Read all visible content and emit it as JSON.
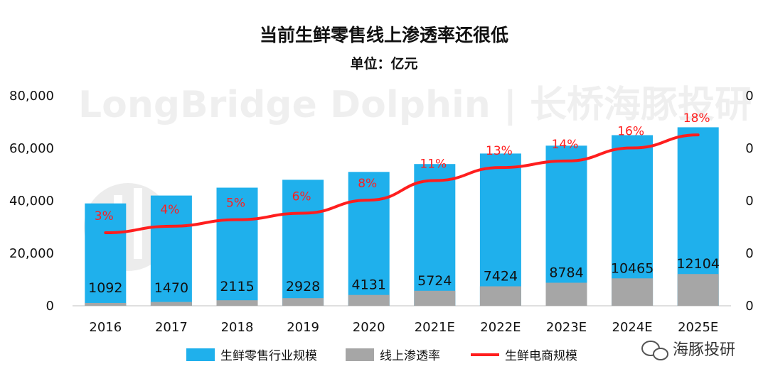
{
  "logo": {
    "text": "海豚投研"
  },
  "watermark": {
    "text": "LongBridge Dolphin | 长桥海豚投研"
  },
  "chart_data": {
    "type": "bar",
    "title": "当前生鲜零售线上渗透率还很低",
    "subtitle": "单位：亿元",
    "categories": [
      "2016",
      "2017",
      "2018",
      "2019",
      "2020",
      "2021E",
      "2022E",
      "2023E",
      "2024E",
      "2025E"
    ],
    "y_left": {
      "min": 0,
      "max": 80000,
      "ticks": [
        0,
        20000,
        40000,
        60000,
        80000
      ],
      "tick_labels": [
        "0",
        "20,000",
        "40,000",
        "60,000",
        "80,000"
      ]
    },
    "y_right": {
      "tick_labels": [
        "0",
        "0",
        "0",
        "0",
        "0"
      ]
    },
    "series": [
      {
        "name": "生鲜零售行业规模",
        "type": "bar",
        "color": "#1fb0ec",
        "values": [
          39000,
          42000,
          45000,
          48000,
          51000,
          54000,
          58000,
          61000,
          65000,
          68000
        ]
      },
      {
        "name": "线上渗透率",
        "type": "bar",
        "color": "#a6a6a6",
        "values": [
          1092,
          1470,
          2115,
          2928,
          4131,
          5724,
          7424,
          8784,
          10465,
          12104
        ],
        "labels": [
          "1092",
          "1470",
          "2115",
          "2928",
          "4131",
          "5724",
          "7424",
          "8784",
          "10465",
          "12104"
        ]
      },
      {
        "name": "生鲜电商规模",
        "type": "line",
        "color": "#ff1e1e",
        "values": [
          3,
          4,
          5,
          6,
          8,
          11,
          13,
          14,
          16,
          18
        ],
        "labels": [
          "3%",
          "4%",
          "5%",
          "6%",
          "8%",
          "11%",
          "13%",
          "14%",
          "16%",
          "18%"
        ]
      }
    ],
    "legend_position": "bottom"
  }
}
